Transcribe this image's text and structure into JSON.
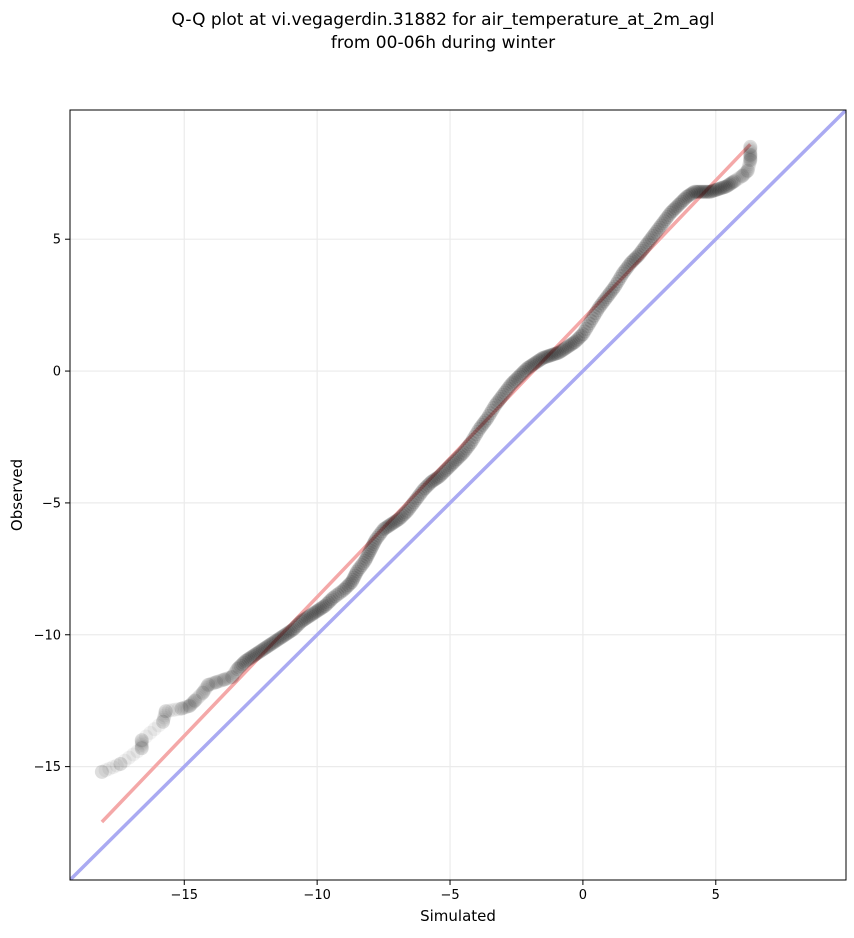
{
  "chart_data": {
    "type": "scatter",
    "title_line1": "Q-Q plot at vi.vegagerdin.31882 for air_temperature_at_2m_agl",
    "title_line2": "from 00-06h during winter",
    "xlabel": "Simulated",
    "ylabel": "Observed",
    "xlim": [
      -19.3,
      9.9
    ],
    "ylim": [
      -19.3,
      9.9
    ],
    "xticks": [
      -15,
      -10,
      -5,
      0,
      5
    ],
    "yticks": [
      -15,
      -10,
      -5,
      0,
      5
    ],
    "xtick_labels": [
      "−15",
      "−10",
      "−5",
      "0",
      "5"
    ],
    "ytick_labels": [
      "−15",
      "−10",
      "−5",
      "0",
      "5"
    ],
    "grid": true,
    "identity_line": {
      "x": [
        -19.3,
        9.9
      ],
      "y": [
        -19.3,
        9.9
      ],
      "color": "#aaaaf2"
    },
    "fit_line": {
      "x": [
        -18.1,
        6.3
      ],
      "y": [
        -17.1,
        8.6
      ],
      "color": "#f4a8a8"
    },
    "points_color": "#000000",
    "quantile_pairs": [
      [
        -18.1,
        -15.2
      ],
      [
        -17.4,
        -14.9
      ],
      [
        -16.6,
        -14.3
      ],
      [
        -16.6,
        -14.0
      ],
      [
        -15.8,
        -13.3
      ],
      [
        -15.7,
        -12.9
      ],
      [
        -15.1,
        -12.8
      ],
      [
        -14.8,
        -12.7
      ],
      [
        -14.6,
        -12.5
      ],
      [
        -14.3,
        -12.2
      ],
      [
        -14.1,
        -11.9
      ],
      [
        -13.8,
        -11.8
      ],
      [
        -13.5,
        -11.7
      ],
      [
        -13.2,
        -11.6
      ],
      [
        -13.0,
        -11.3
      ],
      [
        -12.7,
        -11.0
      ],
      [
        -12.4,
        -10.8
      ],
      [
        -12.1,
        -10.6
      ],
      [
        -11.8,
        -10.4
      ],
      [
        -11.5,
        -10.2
      ],
      [
        -11.2,
        -10.0
      ],
      [
        -10.9,
        -9.8
      ],
      [
        -10.6,
        -9.5
      ],
      [
        -10.3,
        -9.3
      ],
      [
        -10.0,
        -9.1
      ],
      [
        -9.7,
        -8.9
      ],
      [
        -9.4,
        -8.6
      ],
      [
        -9.0,
        -8.3
      ],
      [
        -8.7,
        -8.0
      ],
      [
        -8.5,
        -7.6
      ],
      [
        -8.2,
        -7.2
      ],
      [
        -8.0,
        -6.8
      ],
      [
        -7.8,
        -6.4
      ],
      [
        -7.5,
        -6.0
      ],
      [
        -7.2,
        -5.8
      ],
      [
        -6.9,
        -5.6
      ],
      [
        -6.6,
        -5.3
      ],
      [
        -6.3,
        -4.9
      ],
      [
        -6.0,
        -4.5
      ],
      [
        -5.7,
        -4.2
      ],
      [
        -5.4,
        -4.0
      ],
      [
        -5.1,
        -3.7
      ],
      [
        -4.8,
        -3.4
      ],
      [
        -4.5,
        -3.1
      ],
      [
        -4.2,
        -2.7
      ],
      [
        -3.9,
        -2.2
      ],
      [
        -3.6,
        -1.8
      ],
      [
        -3.3,
        -1.3
      ],
      [
        -3.0,
        -0.9
      ],
      [
        -2.7,
        -0.5
      ],
      [
        -2.4,
        -0.2
      ],
      [
        -2.1,
        0.1
      ],
      [
        -1.8,
        0.3
      ],
      [
        -1.5,
        0.5
      ],
      [
        -1.2,
        0.6
      ],
      [
        -0.9,
        0.7
      ],
      [
        -0.6,
        0.9
      ],
      [
        -0.3,
        1.1
      ],
      [
        0.0,
        1.4
      ],
      [
        0.3,
        1.9
      ],
      [
        0.6,
        2.4
      ],
      [
        0.9,
        2.8
      ],
      [
        1.2,
        3.2
      ],
      [
        1.5,
        3.7
      ],
      [
        1.8,
        4.1
      ],
      [
        2.1,
        4.4
      ],
      [
        2.4,
        4.8
      ],
      [
        2.7,
        5.2
      ],
      [
        3.0,
        5.6
      ],
      [
        3.3,
        6.0
      ],
      [
        3.6,
        6.3
      ],
      [
        3.9,
        6.6
      ],
      [
        4.2,
        6.8
      ],
      [
        4.5,
        6.8
      ],
      [
        4.8,
        6.8
      ],
      [
        5.1,
        6.9
      ],
      [
        5.4,
        7.0
      ],
      [
        5.7,
        7.2
      ],
      [
        6.0,
        7.4
      ],
      [
        6.2,
        7.6
      ],
      [
        6.3,
        8.0
      ],
      [
        6.3,
        8.2
      ],
      [
        6.3,
        8.5
      ]
    ]
  }
}
